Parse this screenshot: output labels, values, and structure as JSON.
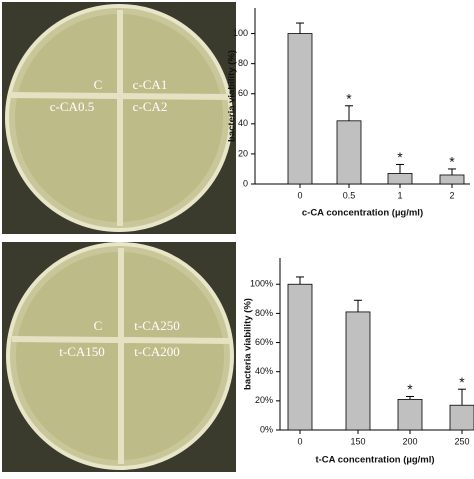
{
  "photos": [
    {
      "labels": [
        "C",
        "c-CA1",
        "c-CA0.5",
        "c-CA2"
      ]
    },
    {
      "labels": [
        "C",
        "t-CA250",
        "t-CA150",
        "t-CA200"
      ]
    }
  ],
  "chart_data": [
    {
      "type": "bar",
      "y_label": "bacteria viability (%)",
      "x_label": "c-CA concentration (µg/ml)",
      "categories": [
        "0",
        "0.5",
        "1",
        "2"
      ],
      "values": [
        100,
        42,
        7,
        6
      ],
      "errors": [
        7,
        10,
        6,
        4
      ],
      "significance": [
        null,
        "*",
        "*",
        "*"
      ],
      "color": "#c0c0c0",
      "ylim": [
        0,
        117
      ],
      "yticks": [
        0,
        20,
        40,
        60,
        80,
        100
      ]
    },
    {
      "type": "bar",
      "y_label": "bacteria viability (%)",
      "x_label": "t-CA concentration (µg/ml)",
      "categories": [
        "0",
        "150",
        "200",
        "250"
      ],
      "values": [
        100,
        81,
        21,
        17
      ],
      "errors": [
        5,
        8,
        2,
        11
      ],
      "significance": [
        null,
        null,
        "*",
        "*"
      ],
      "color": "#c0c0c0",
      "ylim": [
        0,
        118
      ],
      "yticks": [
        {
          "value": 0,
          "label": "0%"
        },
        {
          "value": 20,
          "label": "20%"
        },
        {
          "value": 40,
          "label": "40%"
        },
        {
          "value": 60,
          "label": "60%"
        },
        {
          "value": 80,
          "label": "80%"
        },
        {
          "value": 100,
          "label": "100%"
        }
      ]
    }
  ]
}
